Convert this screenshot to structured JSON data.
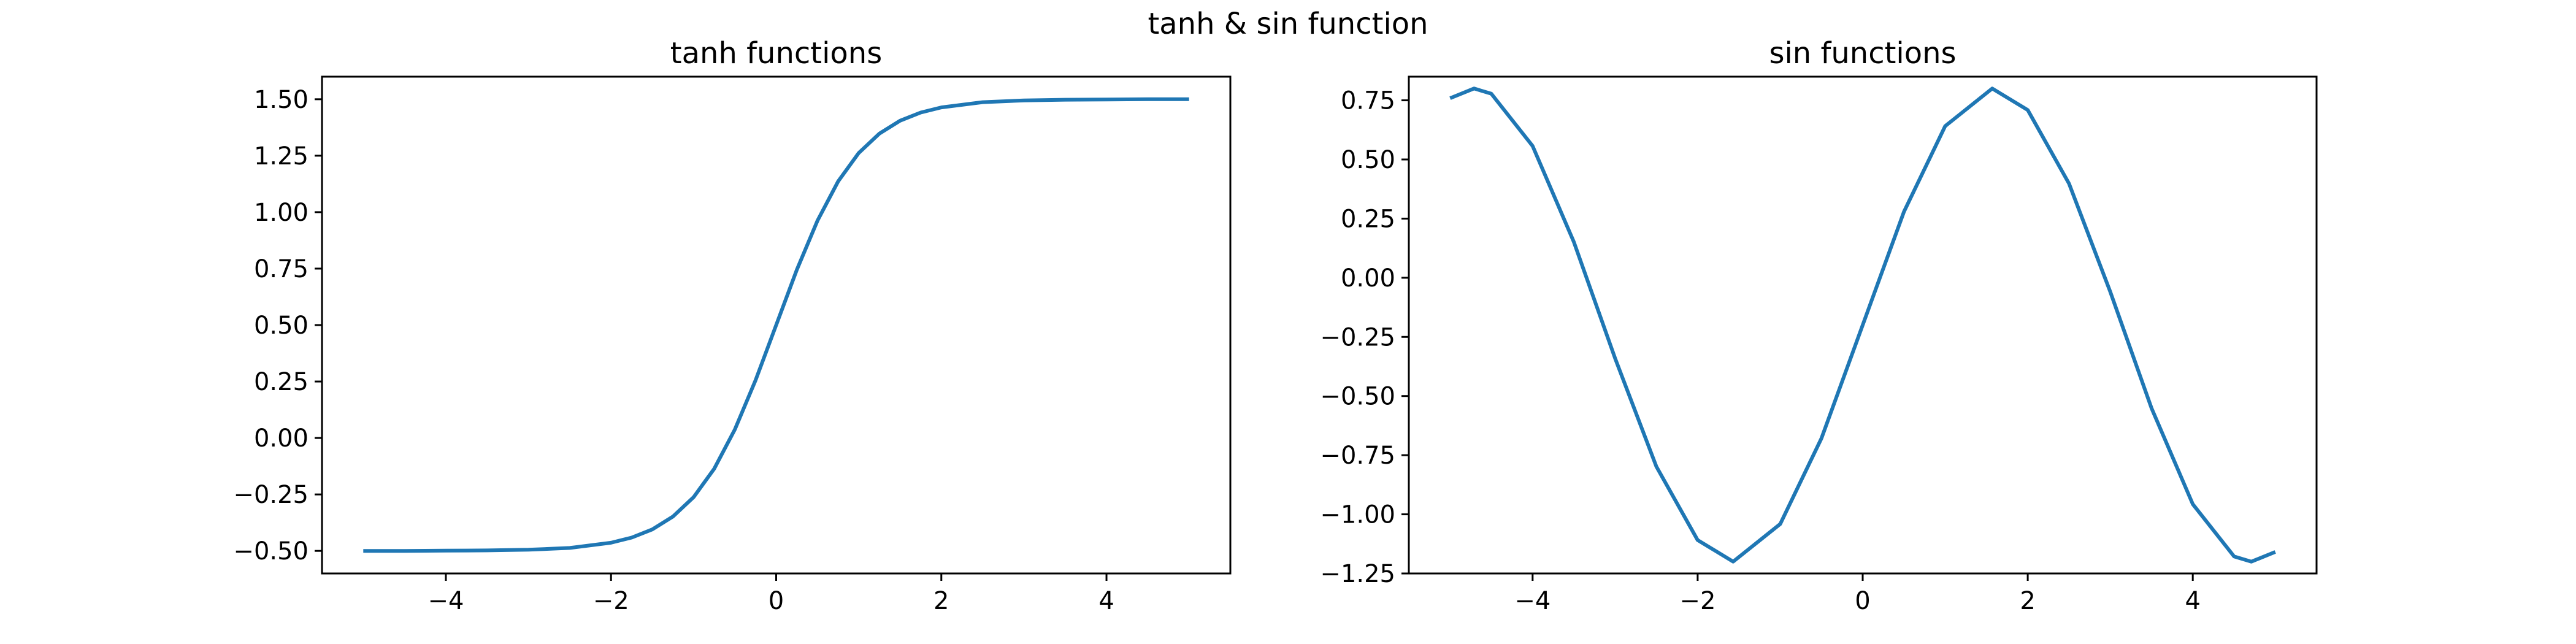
{
  "figure": {
    "title": "tanh & sin function"
  },
  "colors": {
    "line": "#1f77b4",
    "axes": "#000000",
    "background": "#ffffff"
  },
  "chart_data": [
    {
      "type": "line",
      "title": "tanh functions",
      "xlabel": "",
      "ylabel": "",
      "grid": false,
      "xlim": [
        -5.5,
        5.5
      ],
      "ylim": [
        -0.6,
        1.6
      ],
      "xticks": [
        -4,
        -2,
        0,
        2,
        4
      ],
      "xtick_labels": [
        "−4",
        "−2",
        "0",
        "2",
        "4"
      ],
      "yticks": [
        -0.5,
        -0.25,
        0,
        0.25,
        0.5,
        0.75,
        1.0,
        1.25,
        1.5
      ],
      "ytick_labels": [
        "−0.50",
        "−0.25",
        "0.00",
        "0.25",
        "0.50",
        "0.75",
        "1.00",
        "1.25",
        "1.50"
      ],
      "series": [
        {
          "x": [
            -5.0,
            -4.5,
            -4.0,
            -3.5,
            -3.0,
            -2.5,
            -2.0,
            -1.75,
            -1.5,
            -1.25,
            -1.0,
            -0.75,
            -0.5,
            -0.25,
            0.0,
            0.25,
            0.5,
            0.75,
            1.0,
            1.25,
            1.5,
            1.75,
            2.0,
            2.5,
            3.0,
            3.5,
            4.0,
            4.5,
            5.0
          ],
          "y": [
            -0.5,
            -0.5,
            -0.499,
            -0.498,
            -0.495,
            -0.487,
            -0.464,
            -0.441,
            -0.405,
            -0.348,
            -0.262,
            -0.136,
            0.038,
            0.255,
            0.5,
            0.745,
            0.962,
            1.136,
            1.262,
            1.348,
            1.405,
            1.441,
            1.464,
            1.487,
            1.495,
            1.498,
            1.499,
            1.5,
            1.5
          ]
        }
      ]
    },
    {
      "type": "line",
      "title": "sin functions",
      "xlabel": "",
      "ylabel": "",
      "grid": false,
      "xlim": [
        -5.5,
        5.5
      ],
      "ylim": [
        -1.25,
        0.85
      ],
      "xticks": [
        -4,
        -2,
        0,
        2,
        4
      ],
      "xtick_labels": [
        "−4",
        "−2",
        "0",
        "2",
        "4"
      ],
      "yticks": [
        -1.25,
        -1.0,
        -0.75,
        -0.5,
        -0.25,
        0,
        0.25,
        0.5,
        0.75
      ],
      "ytick_labels": [
        "−1.25",
        "−1.00",
        "−0.75",
        "−0.50",
        "−0.25",
        "0.00",
        "0.25",
        "0.50",
        "0.75"
      ],
      "series": [
        {
          "x": [
            -5.0,
            -4.71,
            -4.5,
            -4.0,
            -3.5,
            -3.0,
            -2.5,
            -2.0,
            -1.57,
            -1.0,
            -0.5,
            0.0,
            0.5,
            1.0,
            1.57,
            2.0,
            2.5,
            3.0,
            3.5,
            4.0,
            4.5,
            4.71,
            5.0
          ],
          "y": [
            0.759,
            0.8,
            0.778,
            0.557,
            0.151,
            -0.341,
            -0.798,
            -1.109,
            -1.2,
            -1.041,
            -0.679,
            -0.2,
            0.279,
            0.641,
            0.8,
            0.709,
            0.398,
            -0.059,
            -0.551,
            -0.957,
            -1.178,
            -1.2,
            -1.159
          ]
        }
      ]
    }
  ]
}
